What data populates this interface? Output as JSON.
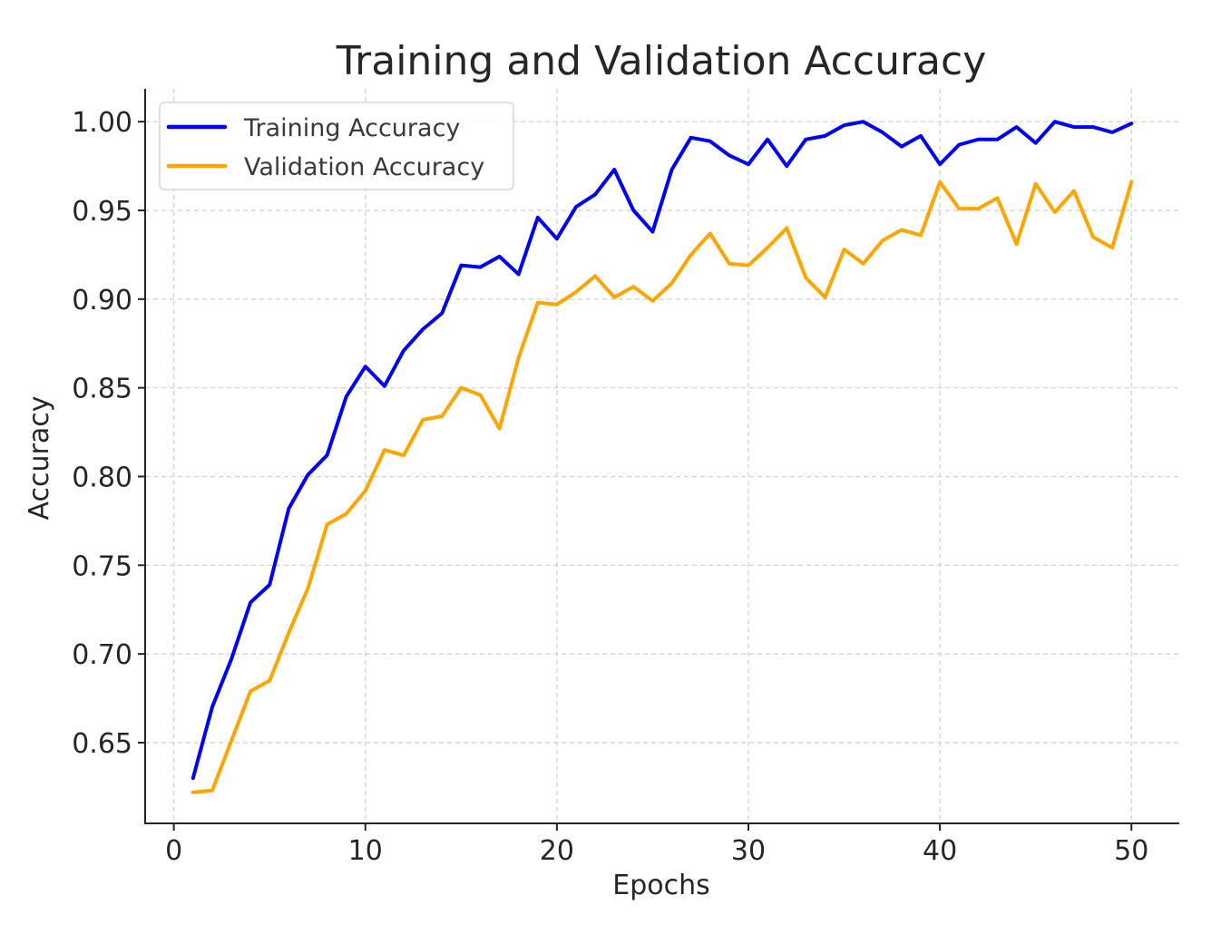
{
  "chart_data": {
    "type": "line",
    "title": "Training and Validation Accuracy",
    "xlabel": "Epochs",
    "ylabel": "Accuracy",
    "xlim": [
      -1.5,
      52.5
    ],
    "ylim": [
      0.6045,
      1.0185
    ],
    "x_ticks": [
      0,
      10,
      20,
      30,
      40,
      50
    ],
    "y_ticks": [
      0.65,
      0.7,
      0.75,
      0.8,
      0.85,
      0.9,
      0.95,
      1.0
    ],
    "y_tick_labels": [
      "0.65",
      "0.70",
      "0.75",
      "0.80",
      "0.85",
      "0.90",
      "0.95",
      "1.00"
    ],
    "grid": true,
    "legend_position": "upper-left",
    "x": [
      1,
      2,
      3,
      4,
      5,
      6,
      7,
      8,
      9,
      10,
      11,
      12,
      13,
      14,
      15,
      16,
      17,
      18,
      19,
      20,
      21,
      22,
      23,
      24,
      25,
      26,
      27,
      28,
      29,
      30,
      31,
      32,
      33,
      34,
      35,
      36,
      37,
      38,
      39,
      40,
      41,
      42,
      43,
      44,
      45,
      46,
      47,
      48,
      49,
      50
    ],
    "series": [
      {
        "name": "Training Accuracy",
        "color": "#0000ff",
        "values": [
          0.63,
          0.67,
          0.697,
          0.729,
          0.739,
          0.782,
          0.801,
          0.812,
          0.845,
          0.862,
          0.851,
          0.871,
          0.883,
          0.892,
          0.919,
          0.918,
          0.924,
          0.914,
          0.946,
          0.934,
          0.952,
          0.959,
          0.973,
          0.95,
          0.938,
          0.973,
          0.991,
          0.989,
          0.981,
          0.976,
          0.99,
          0.975,
          0.99,
          0.992,
          0.998,
          1.0,
          0.994,
          0.986,
          0.992,
          0.976,
          0.987,
          0.99,
          0.99,
          0.997,
          0.988,
          1.0,
          0.997,
          0.997,
          0.994,
          0.999
        ]
      },
      {
        "name": "Validation Accuracy",
        "color": "#ffa500",
        "values": [
          0.622,
          0.623,
          0.651,
          0.679,
          0.685,
          0.712,
          0.737,
          0.773,
          0.779,
          0.792,
          0.815,
          0.812,
          0.832,
          0.834,
          0.85,
          0.846,
          0.827,
          0.867,
          0.898,
          0.897,
          0.904,
          0.913,
          0.901,
          0.907,
          0.899,
          0.909,
          0.925,
          0.937,
          0.92,
          0.919,
          0.929,
          0.94,
          0.912,
          0.901,
          0.928,
          0.92,
          0.933,
          0.939,
          0.936,
          0.966,
          0.951,
          0.951,
          0.957,
          0.931,
          0.965,
          0.949,
          0.961,
          0.935,
          0.929,
          0.966
        ]
      }
    ]
  }
}
